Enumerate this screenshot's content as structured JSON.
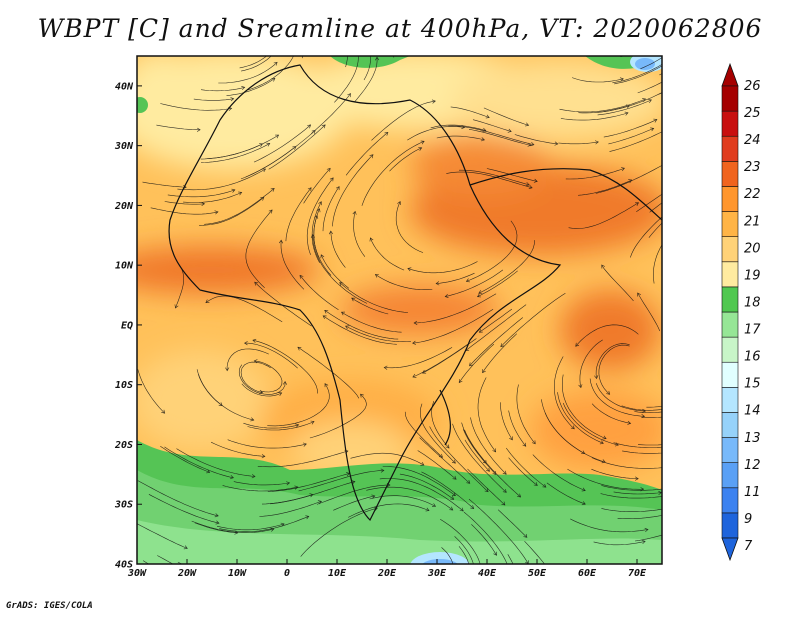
{
  "title": "WBPT [C] and Sreamline at 400hPa, VT: 2020062806",
  "credit": "GrADS: IGES/COLA",
  "map": {
    "lon_range": [
      -30,
      75
    ],
    "lat_range": [
      -40,
      45
    ],
    "lon_ticks": [
      {
        "value": -30,
        "label": "30W"
      },
      {
        "value": -20,
        "label": "20W"
      },
      {
        "value": -10,
        "label": "10W"
      },
      {
        "value": 0,
        "label": "0"
      },
      {
        "value": 10,
        "label": "10E"
      },
      {
        "value": 20,
        "label": "20E"
      },
      {
        "value": 30,
        "label": "30E"
      },
      {
        "value": 40,
        "label": "40E"
      },
      {
        "value": 50,
        "label": "50E"
      },
      {
        "value": 60,
        "label": "60E"
      },
      {
        "value": 70,
        "label": "70E"
      }
    ],
    "lat_ticks": [
      {
        "value": 40,
        "label": "40N"
      },
      {
        "value": 30,
        "label": "30N"
      },
      {
        "value": 20,
        "label": "20N"
      },
      {
        "value": 10,
        "label": "10N"
      },
      {
        "value": 0,
        "label": "EQ"
      },
      {
        "value": -10,
        "label": "10S"
      },
      {
        "value": -20,
        "label": "20S"
      },
      {
        "value": -30,
        "label": "30S"
      },
      {
        "value": -40,
        "label": "40S"
      }
    ]
  },
  "colorbar": {
    "labels": [
      "7",
      "9",
      "11",
      "12",
      "13",
      "14",
      "15",
      "16",
      "17",
      "18",
      "19",
      "20",
      "21",
      "22",
      "23",
      "24",
      "25",
      "26"
    ],
    "colors": [
      "#1e64dc",
      "#3c82f0",
      "#5aa0f5",
      "#78b9fa",
      "#96d2fa",
      "#b4e6ff",
      "#e1ffff",
      "#c8f5c8",
      "#96e696",
      "#50c850",
      "#ffeba0",
      "#ffd278",
      "#ffb446",
      "#ff962d",
      "#f0641e",
      "#e03c1e",
      "#c80f0f",
      "#a50000"
    ]
  }
}
